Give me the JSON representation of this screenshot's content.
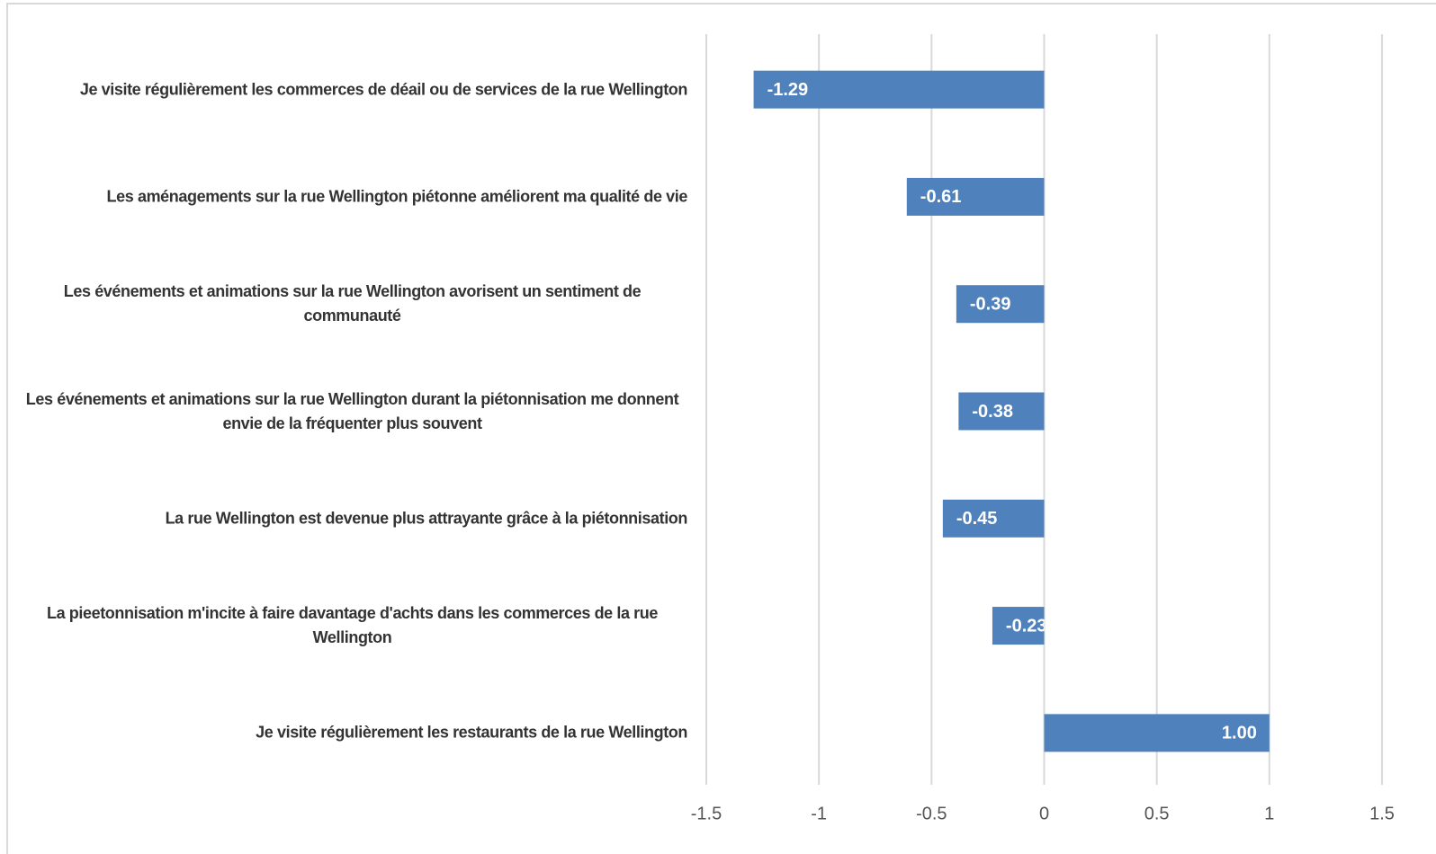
{
  "chart_data": {
    "type": "barh",
    "categories": [
      "Je visite régulièrement les commerces de déail ou de services de la rue Wellington",
      "Les aménagements sur la rue Wellington piétonne améliorent ma qualité de vie",
      "Les événements et animations sur la rue Wellington avorisent un sentiment de communauté",
      "Les événements et animations sur la rue Wellington durant la piétonnisation me donnent envie de la fréquenter plus souvent",
      "La rue Wellington est devenue plus attrayante grâce à la piétonnisation",
      "La pieetonnisation m'incite à faire davantage d'achts dans les commerces de la rue Wellington",
      "Je visite régulièrement les restaurants de la rue Wellington"
    ],
    "values": [
      -1.29,
      -0.61,
      -0.39,
      -0.38,
      -0.45,
      -0.23,
      1.0
    ],
    "value_labels": [
      "-1.29",
      "-0.61",
      "-0.39",
      "-0.38",
      "-0.45",
      "-0.23",
      "1.00"
    ],
    "color": "#4f81bd",
    "xlim": [
      -1.5,
      1.5
    ],
    "xticks": [
      -1.5,
      -1,
      -0.5,
      0,
      0.5,
      1,
      1.5
    ],
    "grid": true
  }
}
